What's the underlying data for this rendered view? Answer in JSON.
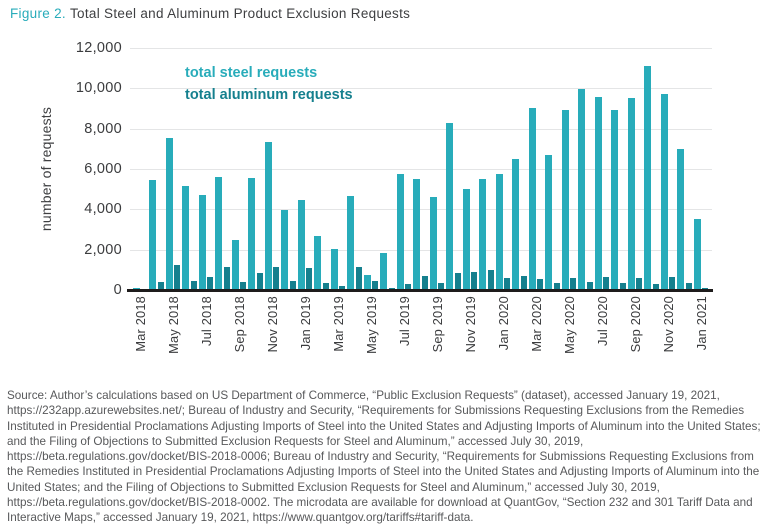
{
  "figure": {
    "label": "Figure 2.",
    "title": "Total Steel and Aluminum Product Exclusion Requests"
  },
  "chart_data": {
    "type": "bar",
    "title": "Total Steel and Aluminum Product Exclusion Requests",
    "ylabel": "number of requests",
    "ylim": [
      0,
      12000
    ],
    "ytick_interval": 2000,
    "ytick_labels": [
      "0",
      "2,000",
      "4,000",
      "6,000",
      "8,000",
      "10,000",
      "12,000"
    ],
    "grid": "horizontal",
    "legend_position": "inside-top-left",
    "categories": [
      "Mar 2018",
      "Apr 2018",
      "May 2018",
      "Jun 2018",
      "Jul 2018",
      "Aug 2018",
      "Sep 2018",
      "Oct 2018",
      "Nov 2018",
      "Dec 2018",
      "Jan 2019",
      "Feb 2019",
      "Mar 2019",
      "Apr 2019",
      "May 2019",
      "Jun 2019",
      "Jul 2019",
      "Aug 2019",
      "Sep 2019",
      "Oct 2019",
      "Nov 2019",
      "Dec 2019",
      "Jan 2020",
      "Feb 2020",
      "Mar 2020",
      "Apr 2020",
      "May 2020",
      "Jun 2020",
      "Jul 2020",
      "Aug 2020",
      "Sep 2020",
      "Oct 2020",
      "Nov 2020",
      "Dec 2020",
      "Jan 2021"
    ],
    "xtick_labels": [
      "Mar 2018",
      "May 2018",
      "Jul 2018",
      "Sep 2018",
      "Nov 2018",
      "Jan 2019",
      "Mar 2019",
      "May 2019",
      "Jul 2019",
      "Sep 2019",
      "Nov 2019",
      "Jan 2020",
      "Mar 2020",
      "May 2020",
      "Jul 2020",
      "Sep 2020",
      "Nov 2020",
      "Jan 2021"
    ],
    "series": [
      {
        "name": "total steel requests",
        "color": "#28acba",
        "values": [
          100,
          5450,
          7550,
          5150,
          4700,
          5600,
          2500,
          5550,
          7350,
          3950,
          4470,
          2670,
          2030,
          4670,
          750,
          1830,
          5750,
          5530,
          4620,
          8280,
          5000,
          5500,
          5750,
          6500,
          9030,
          6700,
          8950,
          9950,
          9580,
          8950,
          9530,
          11130,
          9700,
          7000,
          3500
        ]
      },
      {
        "name": "total aluminum requests",
        "color": "#15808e",
        "values": [
          30,
          400,
          1250,
          450,
          630,
          1130,
          400,
          830,
          1130,
          470,
          1080,
          330,
          200,
          1120,
          450,
          120,
          280,
          700,
          370,
          870,
          900,
          1000,
          580,
          700,
          530,
          370,
          580,
          420,
          670,
          370,
          600,
          300,
          630,
          330,
          80
        ]
      }
    ]
  },
  "source": {
    "text": "Source: Author’s calculations based on US Department of Commerce, “Public Exclusion Requests” (dataset), accessed January 19, 2021, https://232app.azurewebsites.net/; Bureau of Industry and Security, “Requirements for Submissions Requesting Exclusions from the Remedies Instituted in Presidential Proclamations Adjusting Imports of Steel into the United States and Adjusting Imports of Aluminum into the United States; and the Filing of Objections to Submitted Exclusion Requests for Steel and Aluminum,” accessed July 30, 2019, https://beta.regulations.gov/docket/BIS-2018-0006; Bureau of Industry and Security, “Requirements for Submissions Requesting Exclusions from the Remedies Instituted in Presidential Proclamations Adjusting Imports of Steel into the United States and Adjusting Imports of Aluminum into the United States; and the Filing of Objections to Submitted Exclusion Requests for Steel and Aluminum,” accessed July 30, 2019, https://beta.regulations.gov/docket/BIS-2018-0002. The microdata are available for download at QuantGov, “Section 232 and 301 Tariff Data and Interactive Maps,” accessed January 19, 2021, https://www.quantgov.org/tariffs#tariff-data."
  }
}
